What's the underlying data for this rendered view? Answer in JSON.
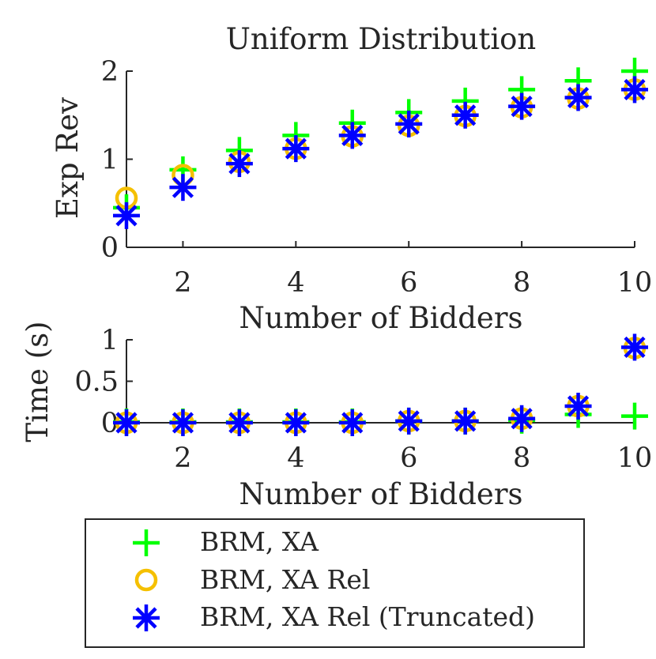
{
  "chart_data": [
    {
      "type": "scatter",
      "title": "Uniform Distribution",
      "xlabel": "Number of Bidders",
      "ylabel": "Exp Rev",
      "xlim": [
        1,
        10
      ],
      "ylim": [
        0,
        2
      ],
      "xticks": [
        2,
        4,
        6,
        8,
        10
      ],
      "yticks": [
        0,
        1,
        2
      ],
      "x": [
        1,
        2,
        3,
        4,
        5,
        6,
        7,
        8,
        9,
        10
      ],
      "series": [
        {
          "name": "BRM, XA",
          "marker": "plus",
          "color": "#00ff00",
          "values": [
            0.45,
            0.88,
            1.1,
            1.27,
            1.41,
            1.53,
            1.66,
            1.79,
            1.89,
            2.0
          ]
        },
        {
          "name": "BRM, XA Rel",
          "marker": "circle",
          "color": "#f5c000",
          "values": [
            0.56,
            0.82,
            0.97,
            1.12,
            1.26,
            1.38,
            1.49,
            1.59,
            1.69,
            1.79
          ]
        },
        {
          "name": "BRM, XA Rel (Truncated)",
          "marker": "asterisk",
          "color": "#0000ff",
          "values": [
            0.36,
            0.68,
            0.95,
            1.12,
            1.27,
            1.4,
            1.5,
            1.6,
            1.7,
            1.79
          ]
        }
      ]
    },
    {
      "type": "scatter",
      "title": "",
      "xlabel": "Number of Bidders",
      "ylabel": "Time (s)",
      "xlim": [
        1,
        10
      ],
      "ylim": [
        0,
        1
      ],
      "xticks": [
        2,
        4,
        6,
        8,
        10
      ],
      "yticks": [
        0,
        0.5,
        1
      ],
      "x": [
        1,
        2,
        3,
        4,
        5,
        6,
        7,
        8,
        9,
        10
      ],
      "series": [
        {
          "name": "BRM, XA",
          "marker": "plus",
          "color": "#00ff00",
          "values": [
            0.01,
            0.01,
            0.01,
            0.01,
            0.01,
            0.02,
            0.02,
            0.03,
            0.1,
            0.08
          ]
        },
        {
          "name": "BRM, XA Rel",
          "marker": "circle",
          "color": "#f5c000",
          "values": [
            0.0,
            0.0,
            0.0,
            0.0,
            0.0,
            0.02,
            0.02,
            0.05,
            0.2,
            0.9
          ]
        },
        {
          "name": "BRM, XA Rel (Truncated)",
          "marker": "asterisk",
          "color": "#0000ff",
          "values": [
            0.0,
            0.0,
            0.0,
            0.0,
            0.0,
            0.02,
            0.02,
            0.05,
            0.2,
            0.91
          ]
        }
      ]
    }
  ],
  "legend": {
    "entries": [
      {
        "label": "BRM, XA",
        "marker": "plus",
        "color": "#00ff00"
      },
      {
        "label": "BRM, XA Rel",
        "marker": "circle",
        "color": "#f5c000"
      },
      {
        "label": "BRM, XA Rel (Truncated)",
        "marker": "asterisk",
        "color": "#0000ff"
      }
    ]
  }
}
